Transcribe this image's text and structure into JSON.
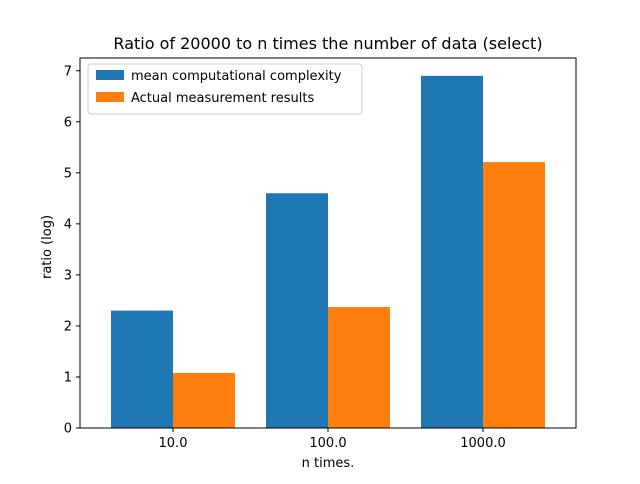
{
  "chart_data": {
    "type": "bar",
    "title": "Ratio of 20000 to n times the number of data (select)",
    "xlabel": "n times.",
    "ylabel": "ratio (log)",
    "categories": [
      "10.0",
      "100.0",
      "1000.0"
    ],
    "series": [
      {
        "name": "mean computational complexity",
        "values": [
          2.3,
          4.6,
          6.9
        ],
        "color": "#1f77b4"
      },
      {
        "name": "Actual measurement results",
        "values": [
          1.08,
          2.37,
          5.21
        ],
        "color": "#ff7f0e"
      }
    ],
    "ylim": [
      0,
      7.25
    ],
    "yticks": [
      "0",
      "1",
      "2",
      "3",
      "4",
      "5",
      "6",
      "7"
    ],
    "grid": false,
    "legend_position": "top-left"
  }
}
